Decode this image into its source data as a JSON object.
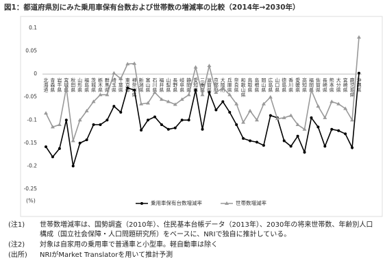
{
  "chart_data": {
    "type": "line",
    "title": "図1：都道府県別にみた乗用車保有台数および世帯数の増減率の比較（2014年→2030年）",
    "y_unit": "(%)",
    "categories": [
      "北海道",
      "青森県",
      "岩手県",
      "宮城県",
      "秋田県",
      "山形県",
      "福島県",
      "茨城県",
      "栃木県",
      "群馬県",
      "埼玉県",
      "千葉県",
      "東京都",
      "神奈川県",
      "新潟県",
      "富山県",
      "石川県",
      "福井県",
      "山梨県",
      "長野県",
      "岐阜県",
      "静岡県",
      "愛知県",
      "三重県",
      "滋賀県",
      "京都府",
      "大阪府",
      "兵庫県",
      "奈良県",
      "和歌山県",
      "鳥取県",
      "島根県",
      "岡山県",
      "広島県",
      "山口県",
      "徳島県",
      "香川県",
      "愛媛県",
      "高知県",
      "福岡県",
      "佐賀県",
      "長崎県",
      "熊本県",
      "大分県",
      "宮崎県",
      "鹿児島県",
      "沖縄県"
    ],
    "series": [
      {
        "name": "乗用車保有台数増減率",
        "color": "#000000",
        "marker": "circle",
        "values": [
          -0.158,
          -0.18,
          -0.162,
          -0.1,
          -0.2,
          -0.15,
          -0.143,
          -0.11,
          -0.11,
          -0.1,
          -0.07,
          -0.083,
          -0.03,
          -0.035,
          -0.122,
          -0.1,
          -0.093,
          -0.11,
          -0.12,
          -0.117,
          -0.1,
          -0.1,
          -0.035,
          -0.12,
          -0.04,
          -0.078,
          -0.06,
          -0.083,
          -0.11,
          -0.14,
          -0.145,
          -0.148,
          -0.155,
          -0.09,
          -0.095,
          -0.145,
          -0.157,
          -0.135,
          -0.17,
          -0.095,
          -0.115,
          -0.157,
          -0.12,
          -0.123,
          -0.13,
          -0.16,
          0.002
        ]
      },
      {
        "name": "世帯数増減率",
        "color": "#999999",
        "marker": "triangle",
        "values": [
          -0.085,
          -0.115,
          -0.11,
          -0.03,
          -0.145,
          -0.1,
          -0.08,
          -0.06,
          -0.045,
          -0.045,
          0.002,
          -0.01,
          0.022,
          0.023,
          -0.065,
          -0.063,
          -0.04,
          -0.055,
          -0.06,
          -0.066,
          -0.055,
          -0.045,
          0.015,
          -0.045,
          0.018,
          -0.04,
          -0.03,
          -0.045,
          -0.065,
          -0.105,
          -0.08,
          -0.1,
          -0.065,
          -0.05,
          -0.097,
          -0.095,
          -0.09,
          -0.11,
          -0.12,
          -0.035,
          -0.07,
          -0.095,
          -0.06,
          -0.065,
          -0.075,
          -0.1,
          0.08
        ]
      }
    ],
    "ylim": [
      -0.25,
      0.1
    ],
    "yticks": [
      0.1,
      0.05,
      0,
      -0.05,
      -0.1,
      -0.15,
      -0.2,
      -0.25
    ],
    "grid": false
  },
  "notes": [
    {
      "label": "(注1)",
      "text": "世帯数増減率は、国勢調査（2010年）、住民基本台帳データ（2013年）、2030年の将来世帯数、年齢別人口構成（国立社会保障・人口問題研究所）をベースに、NRIで独自に推計している。"
    },
    {
      "label": "(注2)",
      "text": "対象は自家用の乗用車で普通車と小型車。軽自動車は除く"
    },
    {
      "label": "(出所)",
      "text": "NRIがMarket Translatorを用いて推計予測"
    }
  ]
}
